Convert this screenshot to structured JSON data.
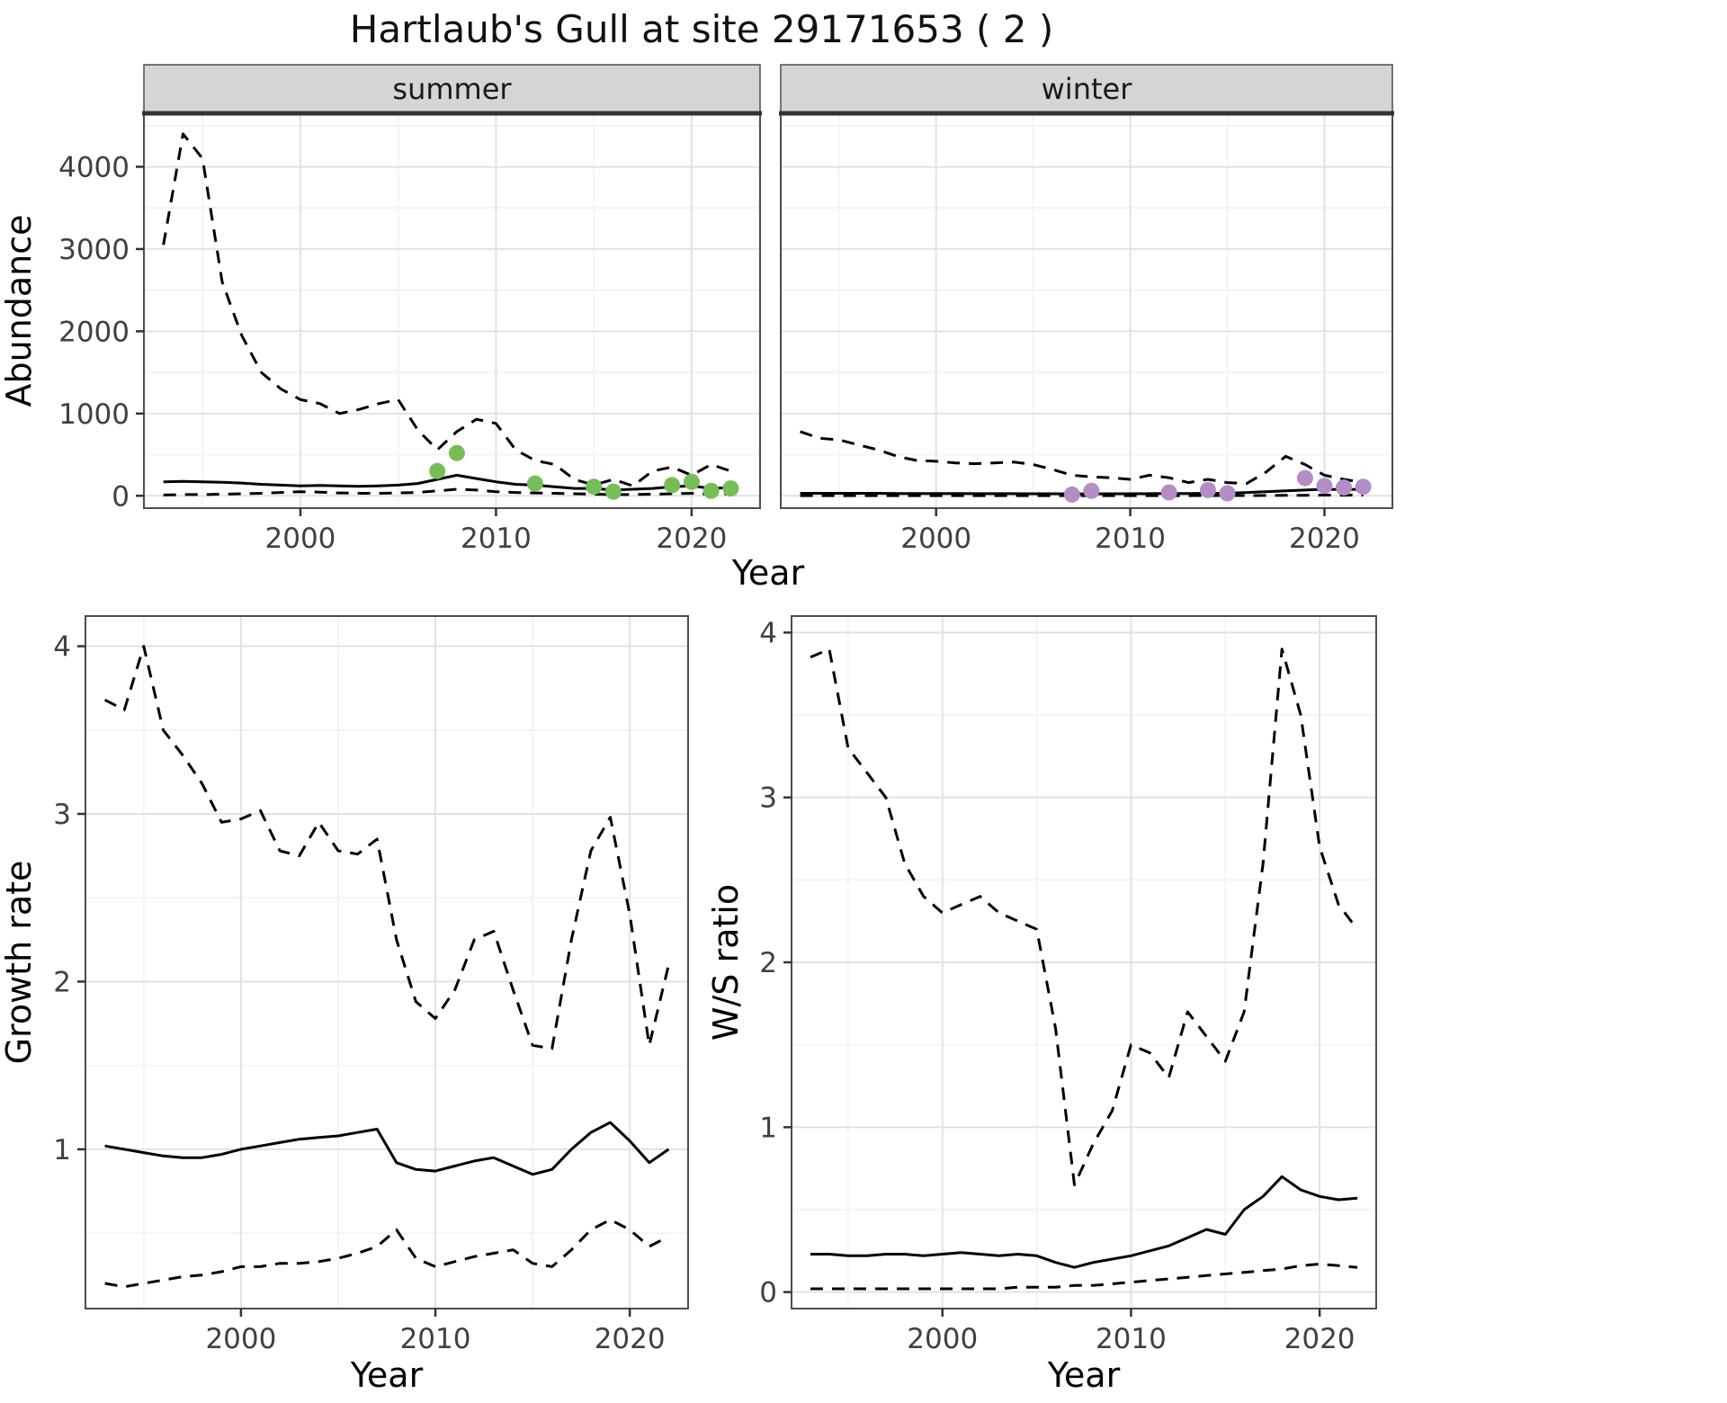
{
  "title": "Hartlaub's Gull at site 29171653 ( 2 )",
  "colors": {
    "summer_points": "#77bd57",
    "winter_points": "#b48cc6",
    "line": "#000000",
    "grid_major": "#e2e2e2",
    "grid_minor": "#f1f1f1",
    "panel_border": "#4d4d4d",
    "strip_bg": "#d5d5d5",
    "strip_border": "#333333",
    "tick_label": "#404040",
    "axis_title": "#000000"
  },
  "chart_data": [
    {
      "id": "abundance",
      "type": "line",
      "title": "Hartlaub's Gull at site 29171653 ( 2 )",
      "xlabel": "Year",
      "ylabel": "Abundance",
      "xlim": [
        1992,
        2023.5
      ],
      "ylim": [
        -150,
        4650
      ],
      "xticks": [
        2000,
        2010,
        2020
      ],
      "yticks": [
        0,
        1000,
        2000,
        3000,
        4000
      ],
      "grid": true,
      "legend": "none",
      "facets": [
        {
          "label": "summer",
          "x": [
            1993,
            1994,
            1995,
            1996,
            1997,
            1998,
            1999,
            2000,
            2001,
            2002,
            2003,
            2004,
            2005,
            2006,
            2007,
            2008,
            2009,
            2010,
            2011,
            2012,
            2013,
            2014,
            2015,
            2016,
            2017,
            2018,
            2019,
            2020,
            2021,
            2022
          ],
          "upper": [
            3050,
            4400,
            4100,
            2600,
            1950,
            1500,
            1300,
            1170,
            1120,
            1000,
            1050,
            1120,
            1170,
            800,
            560,
            780,
            930,
            880,
            560,
            430,
            380,
            200,
            130,
            200,
            120,
            300,
            350,
            250,
            380,
            300
          ],
          "median": [
            170,
            175,
            170,
            165,
            155,
            140,
            130,
            120,
            125,
            120,
            115,
            120,
            130,
            150,
            200,
            250,
            210,
            170,
            140,
            130,
            110,
            90,
            90,
            70,
            80,
            90,
            110,
            120,
            90,
            100
          ],
          "lower": [
            10,
            15,
            15,
            20,
            25,
            30,
            40,
            50,
            45,
            35,
            30,
            30,
            35,
            40,
            60,
            80,
            70,
            50,
            40,
            35,
            30,
            25,
            20,
            15,
            15,
            20,
            25,
            30,
            20,
            25
          ],
          "points": {
            "x": [
              2007,
              2008,
              2012,
              2015,
              2016,
              2019,
              2020,
              2021,
              2022
            ],
            "y": [
              300,
              520,
              150,
              110,
              50,
              130,
              170,
              60,
              90
            ],
            "color_key": "summer_points"
          }
        },
        {
          "label": "winter",
          "x": [
            1993,
            1994,
            1995,
            1996,
            1997,
            1998,
            1999,
            2000,
            2001,
            2002,
            2003,
            2004,
            2005,
            2006,
            2007,
            2008,
            2009,
            2010,
            2011,
            2012,
            2013,
            2014,
            2015,
            2016,
            2017,
            2018,
            2019,
            2020,
            2021,
            2022
          ],
          "upper": [
            780,
            700,
            680,
            620,
            560,
            480,
            430,
            420,
            400,
            390,
            400,
            410,
            380,
            320,
            250,
            230,
            220,
            200,
            250,
            220,
            160,
            200,
            160,
            150,
            290,
            480,
            380,
            250,
            200,
            160
          ],
          "median": [
            30,
            30,
            30,
            30,
            30,
            28,
            28,
            27,
            27,
            26,
            26,
            26,
            25,
            25,
            24,
            24,
            25,
            25,
            26,
            27,
            28,
            30,
            32,
            40,
            50,
            60,
            70,
            80,
            75,
            80
          ],
          "lower": [
            2,
            2,
            2,
            2,
            2,
            2,
            2,
            2,
            2,
            2,
            2,
            2,
            2,
            2,
            2,
            2,
            2,
            2,
            2,
            2,
            2,
            3,
            3,
            3,
            4,
            5,
            6,
            8,
            7,
            8
          ],
          "points": {
            "x": [
              2007,
              2008,
              2012,
              2014,
              2015,
              2019,
              2020,
              2021,
              2022
            ],
            "y": [
              15,
              60,
              40,
              70,
              30,
              215,
              120,
              100,
              110
            ],
            "color_key": "winter_points"
          }
        }
      ]
    },
    {
      "id": "growth_rate",
      "type": "line",
      "title": "",
      "xlabel": "Year",
      "ylabel": "Growth rate",
      "xlim": [
        1992,
        2023
      ],
      "ylim": [
        0.05,
        4.18
      ],
      "xticks": [
        2000,
        2010,
        2020
      ],
      "yticks": [
        1,
        2,
        3,
        4
      ],
      "grid": true,
      "legend": "none",
      "facets": [
        {
          "label": "",
          "x": [
            1993,
            1994,
            1995,
            1996,
            1997,
            1998,
            1999,
            2000,
            2001,
            2002,
            2003,
            2004,
            2005,
            2006,
            2007,
            2008,
            2009,
            2010,
            2011,
            2012,
            2013,
            2014,
            2015,
            2016,
            2017,
            2018,
            2019,
            2020,
            2021,
            2022
          ],
          "upper": [
            3.68,
            3.62,
            4.0,
            3.5,
            3.35,
            3.18,
            2.95,
            2.97,
            3.02,
            2.78,
            2.75,
            2.95,
            2.78,
            2.76,
            2.85,
            2.25,
            1.88,
            1.78,
            1.95,
            2.25,
            2.3,
            1.95,
            1.62,
            1.6,
            2.25,
            2.78,
            2.98,
            2.4,
            1.62,
            2.1
          ],
          "median": [
            1.02,
            1.0,
            0.98,
            0.96,
            0.95,
            0.95,
            0.97,
            1.0,
            1.02,
            1.04,
            1.06,
            1.07,
            1.08,
            1.1,
            1.12,
            0.92,
            0.88,
            0.87,
            0.9,
            0.93,
            0.95,
            0.9,
            0.85,
            0.88,
            1.0,
            1.1,
            1.16,
            1.05,
            0.92,
            1.0
          ],
          "lower": [
            0.2,
            0.18,
            0.2,
            0.22,
            0.24,
            0.25,
            0.27,
            0.3,
            0.3,
            0.32,
            0.32,
            0.33,
            0.35,
            0.38,
            0.42,
            0.52,
            0.35,
            0.3,
            0.33,
            0.36,
            0.38,
            0.4,
            0.32,
            0.3,
            0.4,
            0.52,
            0.58,
            0.52,
            0.42,
            0.48
          ]
        }
      ]
    },
    {
      "id": "ws_ratio",
      "type": "line",
      "title": "",
      "xlabel": "Year",
      "ylabel": "W/S ratio",
      "xlim": [
        1992,
        2023
      ],
      "ylim": [
        -0.1,
        4.1
      ],
      "xticks": [
        2000,
        2010,
        2020
      ],
      "yticks": [
        0,
        1,
        2,
        3,
        4
      ],
      "grid": true,
      "legend": "none",
      "facets": [
        {
          "label": "",
          "x": [
            1993,
            1994,
            1995,
            1996,
            1997,
            1998,
            1999,
            2000,
            2001,
            2002,
            2003,
            2004,
            2005,
            2006,
            2007,
            2008,
            2009,
            2010,
            2011,
            2012,
            2013,
            2014,
            2015,
            2016,
            2017,
            2018,
            2019,
            2020,
            2021,
            2022
          ],
          "upper": [
            3.85,
            3.9,
            3.3,
            3.15,
            3.0,
            2.6,
            2.4,
            2.3,
            2.35,
            2.4,
            2.3,
            2.25,
            2.2,
            1.6,
            0.65,
            0.9,
            1.1,
            1.5,
            1.45,
            1.3,
            1.7,
            1.55,
            1.4,
            1.7,
            2.6,
            3.9,
            3.5,
            2.7,
            2.35,
            2.2
          ],
          "median": [
            0.23,
            0.23,
            0.22,
            0.22,
            0.23,
            0.23,
            0.22,
            0.23,
            0.24,
            0.23,
            0.22,
            0.23,
            0.22,
            0.18,
            0.15,
            0.18,
            0.2,
            0.22,
            0.25,
            0.28,
            0.33,
            0.38,
            0.35,
            0.5,
            0.58,
            0.7,
            0.62,
            0.58,
            0.56,
            0.57
          ],
          "lower": [
            0.02,
            0.02,
            0.02,
            0.02,
            0.02,
            0.02,
            0.02,
            0.02,
            0.02,
            0.02,
            0.02,
            0.03,
            0.03,
            0.03,
            0.04,
            0.04,
            0.05,
            0.06,
            0.07,
            0.08,
            0.09,
            0.1,
            0.11,
            0.12,
            0.13,
            0.14,
            0.16,
            0.17,
            0.16,
            0.15
          ]
        }
      ]
    }
  ]
}
